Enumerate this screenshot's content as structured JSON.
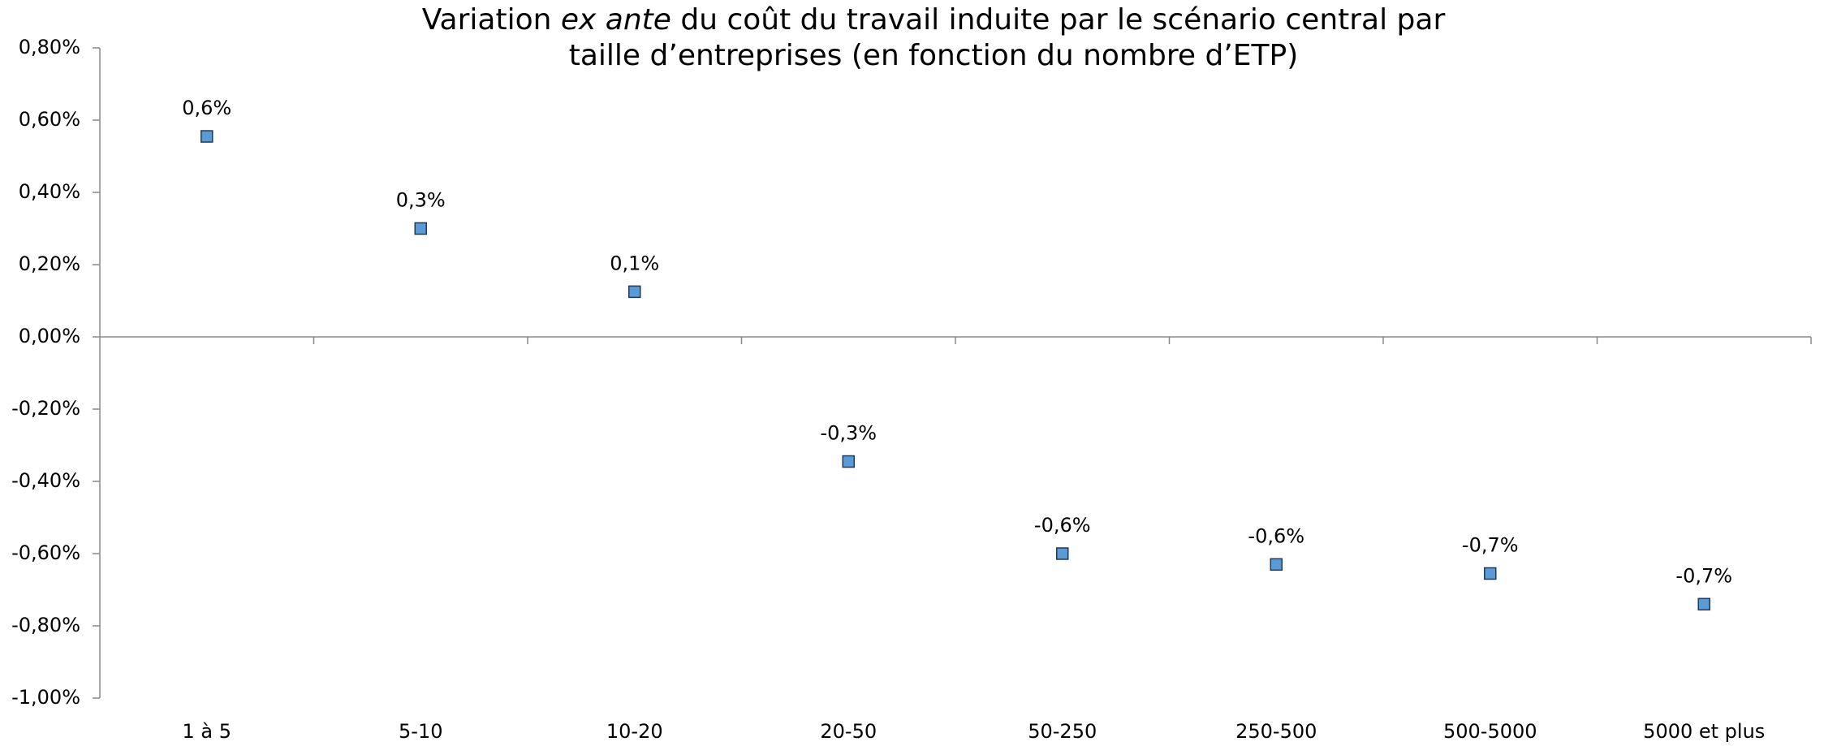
{
  "chart_data": {
    "type": "scatter",
    "title": [
      [
        "Variation ",
        "ex ante",
        " du coût du travail induite par le scénario central par"
      ],
      [
        "taille d’entreprises (en fonction du nombre d’ETP)"
      ]
    ],
    "categories": [
      "1 à 5",
      "5-10",
      "10-20",
      "20-50",
      "50-250",
      "250-500",
      "500-5000",
      "5000 et plus"
    ],
    "values": [
      0.555,
      0.3,
      0.125,
      -0.345,
      -0.6,
      -0.63,
      -0.655,
      -0.74
    ],
    "value_labels": [
      "0,6%",
      "0,3%",
      "0,1%",
      "-0,3%",
      "-0,6%",
      "-0,6%",
      "-0,7%",
      "-0,7%"
    ],
    "color": "#5b9bd5",
    "ylim": [
      -1.0,
      0.8
    ],
    "yticks": [
      {
        "value": 0.8,
        "label": "0,80%"
      },
      {
        "value": 0.6,
        "label": "0,60%"
      },
      {
        "value": 0.4,
        "label": "0,40%"
      },
      {
        "value": 0.2,
        "label": "0,20%"
      },
      {
        "value": 0,
        "label": "0,00%"
      },
      {
        "value": -0.2,
        "label": "-0,20%"
      },
      {
        "value": -0.4,
        "label": "-0,40%"
      },
      {
        "value": -0.6,
        "label": "-0,60%"
      },
      {
        "value": -0.8,
        "label": "-0,80%"
      },
      {
        "value": -1.0,
        "label": "-1,00%"
      }
    ],
    "grid": false
  }
}
